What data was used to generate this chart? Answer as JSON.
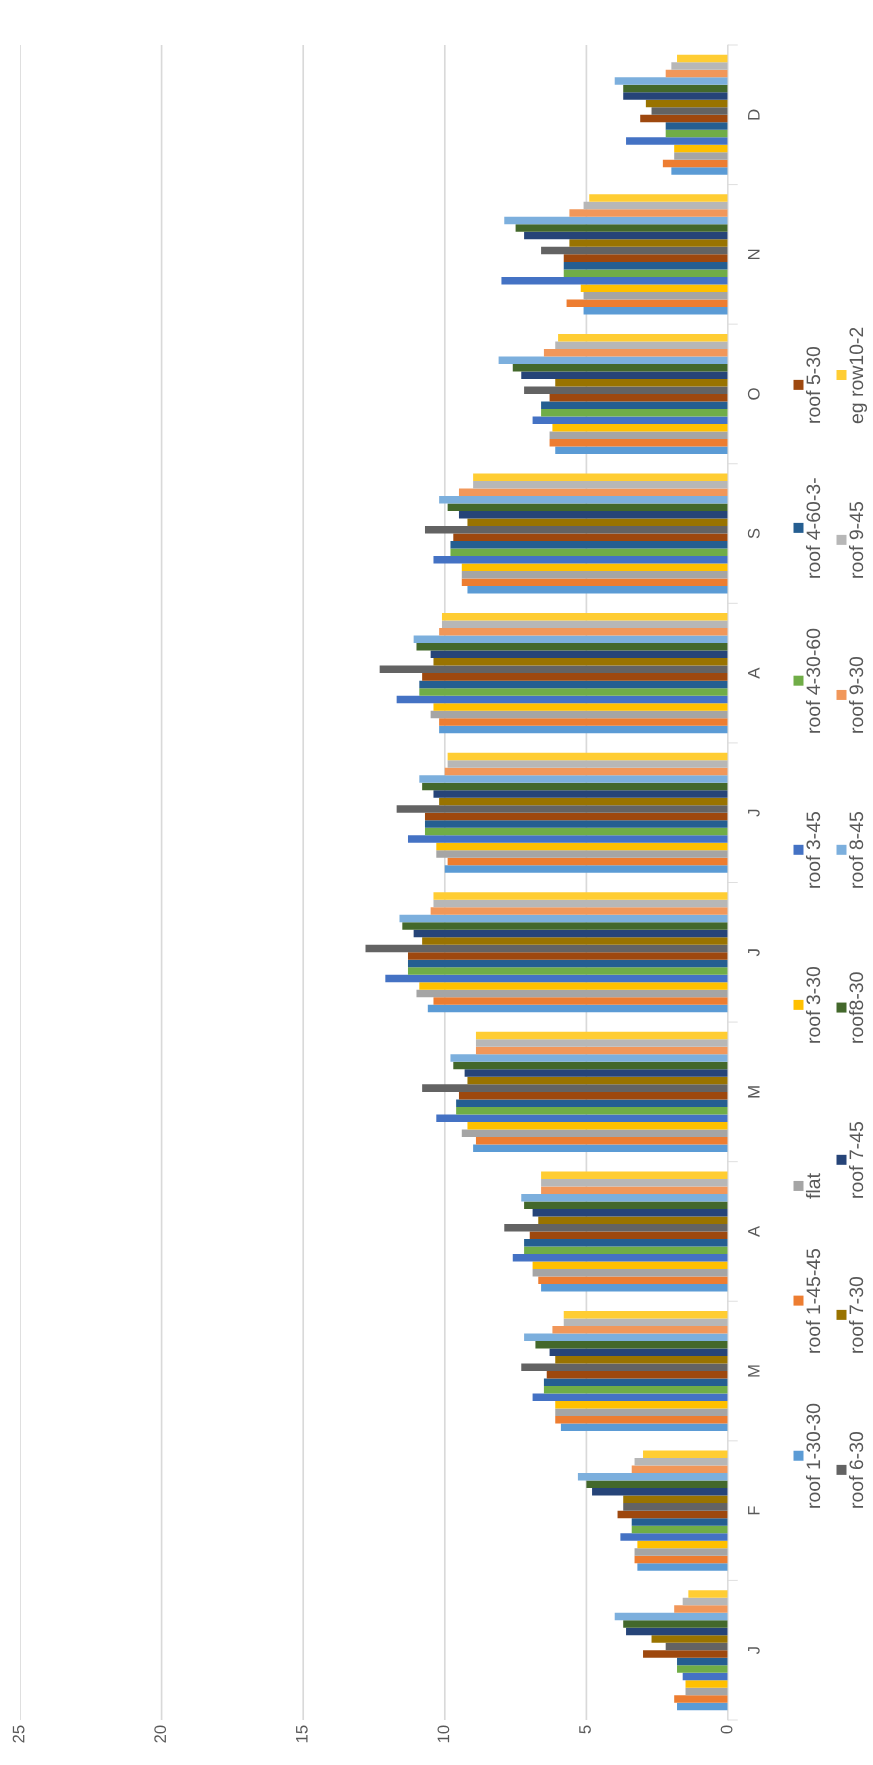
{
  "chart_data": {
    "type": "bar",
    "orientation": "horizontal",
    "categories": [
      "D",
      "N",
      "O",
      "S",
      "A",
      "J",
      "J",
      "M",
      "A",
      "M",
      "F",
      "J"
    ],
    "series": [
      {
        "name": "roof 1-30-30",
        "color": "#5b9bd5",
        "values": [
          2.0,
          5.1,
          6.1,
          9.2,
          10.2,
          10.0,
          10.6,
          9.0,
          6.6,
          5.9,
          3.2,
          1.8
        ]
      },
      {
        "name": "roof 1-45-45",
        "color": "#ed7d31",
        "values": [
          2.3,
          5.7,
          6.3,
          9.4,
          10.2,
          9.9,
          10.4,
          8.9,
          6.7,
          6.1,
          3.3,
          1.9
        ]
      },
      {
        "name": "flat",
        "color": "#a5a5a5",
        "values": [
          1.9,
          5.1,
          6.3,
          9.4,
          10.5,
          10.3,
          11.0,
          9.4,
          6.9,
          6.1,
          3.3,
          1.5
        ]
      },
      {
        "name": "roof 3-30",
        "color": "#ffc000",
        "values": [
          1.9,
          5.2,
          6.2,
          9.4,
          10.4,
          10.3,
          10.9,
          9.2,
          6.9,
          6.1,
          3.2,
          1.5
        ]
      },
      {
        "name": "roof 3-45",
        "color": "#4472c4",
        "values": [
          3.6,
          8.0,
          6.9,
          10.4,
          11.7,
          11.3,
          12.1,
          10.3,
          7.6,
          6.9,
          3.8,
          1.6
        ]
      },
      {
        "name": "roof 4-30-60",
        "color": "#70ad47",
        "values": [
          2.2,
          5.8,
          6.6,
          9.8,
          10.9,
          10.7,
          11.3,
          9.6,
          7.2,
          6.5,
          3.4,
          1.8
        ]
      },
      {
        "name": "roof 4-60-3-",
        "color": "#255e91",
        "values": [
          2.2,
          5.8,
          6.6,
          9.8,
          10.9,
          10.7,
          11.3,
          9.6,
          7.2,
          6.5,
          3.4,
          1.8
        ]
      },
      {
        "name": "roof 5-30",
        "color": "#9e480e",
        "values": [
          3.1,
          5.8,
          6.3,
          9.7,
          10.8,
          10.7,
          11.3,
          9.5,
          7.0,
          6.4,
          3.9,
          3.0
        ]
      },
      {
        "name": "roof 6-30",
        "color": "#636363",
        "values": [
          2.7,
          6.6,
          7.2,
          10.7,
          12.3,
          11.7,
          12.8,
          10.8,
          7.9,
          7.3,
          3.7,
          2.2
        ]
      },
      {
        "name": "roof 7-30",
        "color": "#997300",
        "values": [
          2.9,
          5.6,
          6.1,
          9.2,
          10.4,
          10.2,
          10.8,
          9.2,
          6.7,
          6.1,
          3.7,
          2.7
        ]
      },
      {
        "name": "roof 7-45",
        "color": "#264478",
        "values": [
          3.7,
          7.2,
          7.3,
          9.5,
          10.5,
          10.4,
          11.1,
          9.3,
          6.9,
          6.3,
          4.8,
          3.6
        ]
      },
      {
        "name": "roof8-30",
        "color": "#43682b",
        "values": [
          3.7,
          7.5,
          7.6,
          9.9,
          11.0,
          10.8,
          11.5,
          9.7,
          7.2,
          6.8,
          5.0,
          3.7
        ]
      },
      {
        "name": "roof 8-45",
        "color": "#7cafdd",
        "values": [
          4.0,
          7.9,
          8.1,
          10.2,
          11.1,
          10.9,
          11.6,
          9.8,
          7.3,
          7.2,
          5.3,
          4.0
        ]
      },
      {
        "name": "roof 9-30",
        "color": "#f1975a",
        "values": [
          2.2,
          5.6,
          6.5,
          9.5,
          10.2,
          10.0,
          10.5,
          8.9,
          6.6,
          6.2,
          3.4,
          1.9
        ]
      },
      {
        "name": "roof 9-45",
        "color": "#b7b7b7",
        "values": [
          2.0,
          5.1,
          6.1,
          9.0,
          10.1,
          9.9,
          10.4,
          8.9,
          6.6,
          5.8,
          3.3,
          1.6
        ]
      },
      {
        "name": "eg row10-2",
        "color": "#ffcd33",
        "values": [
          1.8,
          4.9,
          6.0,
          9.0,
          10.1,
          9.9,
          10.4,
          8.9,
          6.6,
          5.8,
          3.0,
          1.4
        ]
      }
    ],
    "xlim": [
      25,
      0
    ],
    "xticks": [
      0,
      5,
      10,
      15,
      20,
      25
    ],
    "grid": "x",
    "legend": "right"
  }
}
